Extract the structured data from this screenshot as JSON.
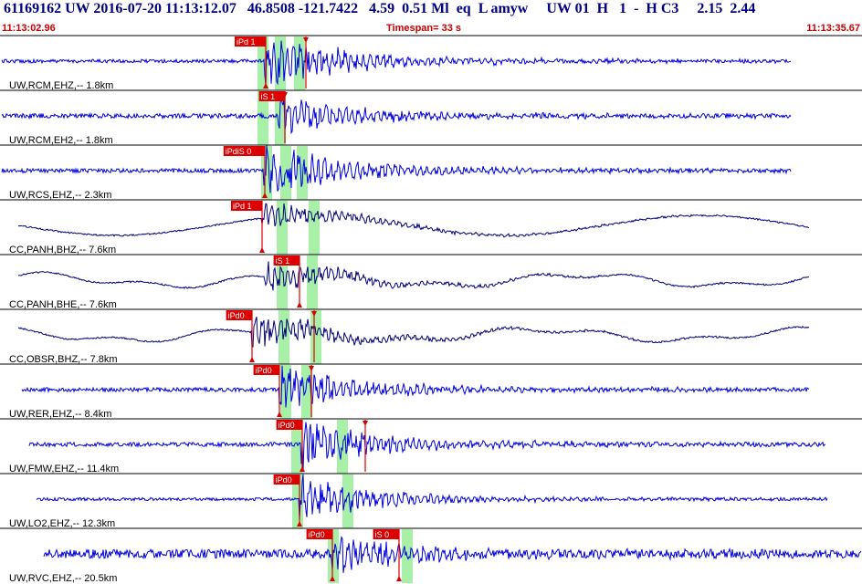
{
  "header": {
    "line": "61169162 UW 2016-07-20 11:13:12.07   46.8508 -121.7422   4.59  0.51 Ml  eq  L amyw     UW 01  H   1  -  H C3     2.15  2.44",
    "start_time": "11:13:02.96",
    "timespan": "Timespan=  33 s",
    "end_time": "11:13:35.67"
  },
  "colors": {
    "trace_broadband": "#00007a",
    "trace_short_period": "#0000dd",
    "pick": "#dd0000",
    "window": "#a8f0a8",
    "separator": "#000000"
  },
  "panels": [
    {
      "label": "UW,RCM,EHZ,-- 1.8km",
      "style": "sp",
      "green": [
        [
          282,
          294
        ],
        [
          301,
          313
        ],
        [
          322,
          334
        ]
      ],
      "picks": [
        {
          "label": "iPd 1",
          "x": 291,
          "side": "left",
          "dir": "up"
        },
        {
          "label": "",
          "x": 335,
          "side": "right",
          "dir": "down"
        }
      ],
      "onset": 290,
      "end": 866,
      "amp": 26,
      "noise": 1.2
    },
    {
      "label": "UW,RCM,EH2,-- 1.8km",
      "style": "sp",
      "green": [
        [
          282,
          294
        ],
        [
          301,
          313
        ]
      ],
      "picks": [
        {
          "label": "iS 1",
          "x": 312,
          "side": "left",
          "dir": "down"
        }
      ],
      "onset": 305,
      "end": 866,
      "amp": 18,
      "noise": 1.6
    },
    {
      "label": "UW,RCS,EHZ,-- 2.3km",
      "style": "sp",
      "green": [
        [
          286,
          298
        ],
        [
          307,
          319
        ],
        [
          325,
          337
        ]
      ],
      "picks": [
        {
          "label": "iPdiS 0",
          "x": 290,
          "side": "left",
          "dir": "up"
        }
      ],
      "onset": 289,
      "end": 866,
      "amp": 24,
      "noise": 1.4
    },
    {
      "label": "CC,PANH,BHZ,-- 7.6km",
      "style": "bb",
      "green": [
        [
          303,
          315
        ],
        [
          338,
          350
        ]
      ],
      "picks": [
        {
          "label": "iPd 1",
          "x": 287,
          "side": "left",
          "dir": "up"
        }
      ],
      "onset": 287,
      "end": 886,
      "amp": 13,
      "noise": 0.8
    },
    {
      "label": "CC,PANH,BHE,-- 7.6km",
      "style": "bb",
      "green": [
        [
          303,
          315
        ],
        [
          336,
          348
        ]
      ],
      "picks": [
        {
          "label": "iS 1",
          "x": 328,
          "side": "left",
          "dir": "up"
        }
      ],
      "onset": 290,
      "end": 886,
      "amp": 14,
      "noise": 0.8
    },
    {
      "label": "CC,OBSR,BHZ,-- 7.8km",
      "style": "bb",
      "green": [
        [
          305,
          317
        ],
        [
          340,
          352
        ]
      ],
      "picks": [
        {
          "label": "iPd0",
          "x": 276,
          "side": "left",
          "dir": "up"
        },
        {
          "label": "",
          "x": 344,
          "side": "right",
          "dir": "down"
        }
      ],
      "onset": 276,
      "end": 886,
      "amp": 16,
      "noise": 0.8
    },
    {
      "label": "UW,RER,EHZ,-- 8.4km",
      "style": "sp",
      "green": [
        [
          307,
          319
        ],
        [
          330,
          342
        ]
      ],
      "picks": [
        {
          "label": "iPd0",
          "x": 306,
          "side": "left",
          "dir": "up"
        },
        {
          "label": "",
          "x": 341,
          "side": "right",
          "dir": "down"
        }
      ],
      "onset": 306,
      "end": 886,
      "amp": 22,
      "noise": 1.4
    },
    {
      "label": "UW,FMW,EHZ,-- 11.4km",
      "style": "sp",
      "green": [
        [
          319,
          331
        ],
        [
          369,
          381
        ]
      ],
      "picks": [
        {
          "label": "iPd0",
          "x": 331,
          "side": "left",
          "dir": "up"
        },
        {
          "label": "",
          "x": 400,
          "side": "right",
          "dir": "down"
        }
      ],
      "onset": 330,
      "end": 904,
      "amp": 22,
      "noise": 1.4
    },
    {
      "label": "UW,LO2,EHZ,-- 12.3km",
      "style": "sp",
      "green": [
        [
          320,
          332
        ],
        [
          375,
          387
        ]
      ],
      "picks": [
        {
          "label": "iPd0",
          "x": 328,
          "side": "left",
          "dir": "up"
        }
      ],
      "onset": 328,
      "end": 906,
      "amp": 20,
      "noise": 1.0
    },
    {
      "label": "UW,RVC,EHZ,-- 20.5km",
      "style": "sp",
      "green": [
        [
          359,
          371
        ],
        [
          440,
          452
        ]
      ],
      "picks": [
        {
          "label": "iPd0",
          "x": 364,
          "side": "left",
          "dir": "up"
        },
        {
          "label": "iS 0",
          "x": 437,
          "side": "left",
          "dir": "up"
        }
      ],
      "onset": 363,
      "end": 944,
      "amp": 18,
      "noise": 3.0
    }
  ]
}
